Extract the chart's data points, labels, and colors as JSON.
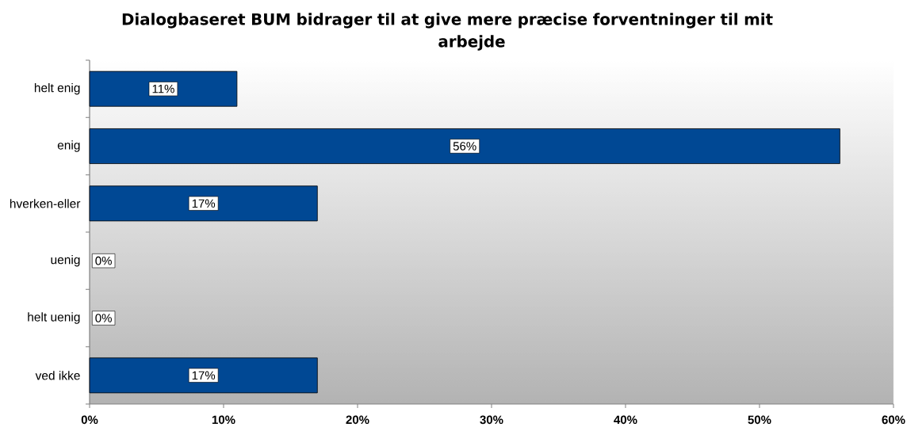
{
  "chart_data": {
    "type": "bar",
    "orientation": "horizontal",
    "title": "Dialogbaseret BUM bidrager til at give mere præcise forventninger til mit arbejde",
    "categories": [
      "helt enig",
      "enig",
      "hverken-eller",
      "uenig",
      "helt uenig",
      "ved ikke"
    ],
    "values": [
      11,
      56,
      17,
      0,
      0,
      17
    ],
    "value_labels": [
      "11%",
      "56%",
      "17%",
      "0%",
      "0%",
      "17%"
    ],
    "color": "#004894",
    "xlim": [
      0,
      60
    ],
    "xticks": [
      {
        "value": 0,
        "label": "0%"
      },
      {
        "value": 10,
        "label": "10%"
      },
      {
        "value": 20,
        "label": "20%"
      },
      {
        "value": 30,
        "label": "30%"
      },
      {
        "value": 40,
        "label": "40%"
      },
      {
        "value": 50,
        "label": "50%"
      },
      {
        "value": 60,
        "label": "60%"
      }
    ]
  }
}
